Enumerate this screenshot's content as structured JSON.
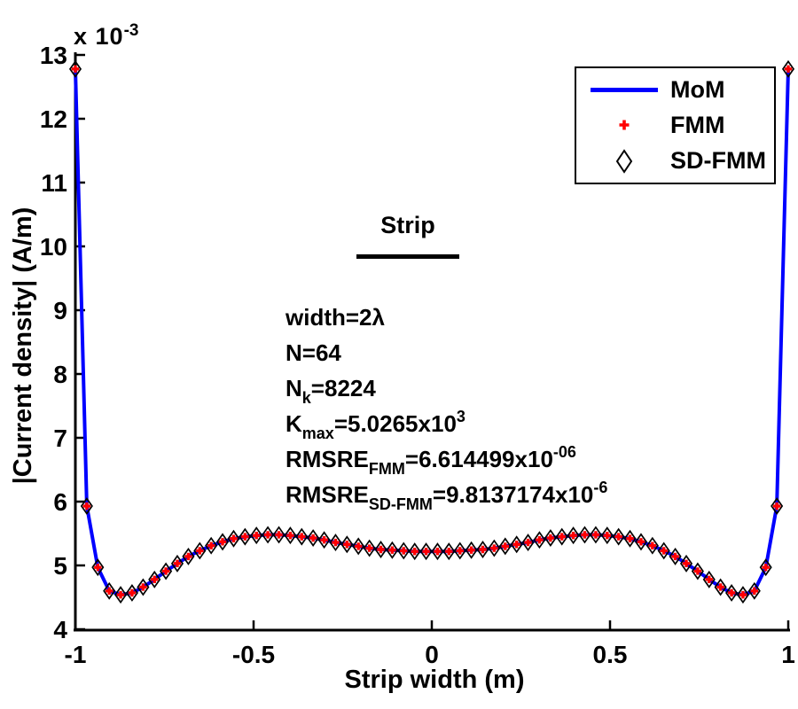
{
  "figure": {
    "background": "#ffffff",
    "offset_label": {
      "prefix": "x 10",
      "exponent": "-3"
    },
    "y_axis": {
      "label": "|Current density| (A/m)",
      "ticks": [
        4,
        5,
        6,
        7,
        8,
        9,
        10,
        11,
        12,
        13
      ]
    },
    "x_axis": {
      "label": "Strip width (m)",
      "ticks": [
        -1,
        -0.5,
        0,
        0.5,
        1
      ],
      "tick_labels": [
        "-1",
        "-0.5",
        "0",
        "0.5",
        "1"
      ]
    },
    "legend": {
      "items": [
        {
          "label": "MoM",
          "marker": "line",
          "color": "#0000ff"
        },
        {
          "label": "FMM",
          "marker": "plus",
          "color": "#ff0000"
        },
        {
          "label": "SD-FMM",
          "marker": "open-diamond",
          "color": "#000000"
        }
      ]
    },
    "annotations": {
      "strip_label": "Strip",
      "lines": [
        [
          {
            "t": "width=2λ"
          }
        ],
        [
          {
            "t": "N=64"
          }
        ],
        [
          {
            "t": "N"
          },
          {
            "t": "k",
            "s": "sub"
          },
          {
            "t": "=8224"
          }
        ],
        [
          {
            "t": "K"
          },
          {
            "t": "max",
            "s": "sub"
          },
          {
            "t": "=5.0265x10"
          },
          {
            "t": "3",
            "s": "sup"
          }
        ],
        [
          {
            "t": "RMSRE"
          },
          {
            "t": "FMM",
            "s": "sub"
          },
          {
            "t": "=6.614499x10"
          },
          {
            "t": "-06",
            "s": "sup"
          }
        ],
        [
          {
            "t": "RMSRE"
          },
          {
            "t": "SD-FMM",
            "s": "sub"
          },
          {
            "t": "=9.8137174x10"
          },
          {
            "t": "-6",
            "s": "sup"
          }
        ]
      ]
    }
  },
  "chart_data": {
    "type": "line",
    "title": "",
    "xlabel": "Strip width (m)",
    "ylabel": "|Current density| (A/m)",
    "xlim": [
      -1,
      1
    ],
    "ylim_e3": [
      4,
      13
    ],
    "y_unit": "A/m, values scaled by 10^-3",
    "grid": false,
    "legend_position": "upper-right",
    "series": [
      {
        "name": "MoM",
        "style": "solid-line",
        "color": "#0000ff",
        "line_width": 4
      },
      {
        "name": "FMM",
        "style": "markers",
        "marker": "plus",
        "color": "#ff0000"
      },
      {
        "name": "SD-FMM",
        "style": "markers",
        "marker": "open-diamond",
        "color": "#000000"
      }
    ],
    "note": "All three series coincide; 64 sample points across the strip.",
    "x": [
      -1,
      -0.968,
      -0.937,
      -0.905,
      -0.873,
      -0.841,
      -0.81,
      -0.778,
      -0.746,
      -0.714,
      -0.683,
      -0.651,
      -0.619,
      -0.587,
      -0.556,
      -0.524,
      -0.492,
      -0.46,
      -0.429,
      -0.397,
      -0.365,
      -0.333,
      -0.302,
      -0.27,
      -0.238,
      -0.206,
      -0.175,
      -0.143,
      -0.111,
      -0.079,
      -0.048,
      -0.016,
      0.016,
      0.048,
      0.079,
      0.111,
      0.143,
      0.175,
      0.206,
      0.238,
      0.27,
      0.302,
      0.333,
      0.365,
      0.397,
      0.429,
      0.46,
      0.492,
      0.524,
      0.556,
      0.587,
      0.619,
      0.651,
      0.683,
      0.714,
      0.746,
      0.778,
      0.81,
      0.841,
      0.873,
      0.905,
      0.937,
      0.968,
      1
    ],
    "y_e3": [
      12.78,
      5.93,
      4.97,
      4.6,
      4.54,
      4.57,
      4.66,
      4.78,
      4.91,
      5.03,
      5.14,
      5.23,
      5.31,
      5.37,
      5.42,
      5.45,
      5.47,
      5.48,
      5.48,
      5.47,
      5.45,
      5.43,
      5.4,
      5.36,
      5.33,
      5.3,
      5.27,
      5.25,
      5.24,
      5.23,
      5.22,
      5.22,
      5.22,
      5.22,
      5.23,
      5.24,
      5.25,
      5.27,
      5.3,
      5.33,
      5.36,
      5.4,
      5.43,
      5.45,
      5.47,
      5.48,
      5.48,
      5.47,
      5.45,
      5.42,
      5.37,
      5.31,
      5.23,
      5.14,
      5.03,
      4.91,
      4.78,
      4.66,
      4.57,
      4.54,
      4.6,
      4.97,
      5.93,
      12.78
    ]
  }
}
